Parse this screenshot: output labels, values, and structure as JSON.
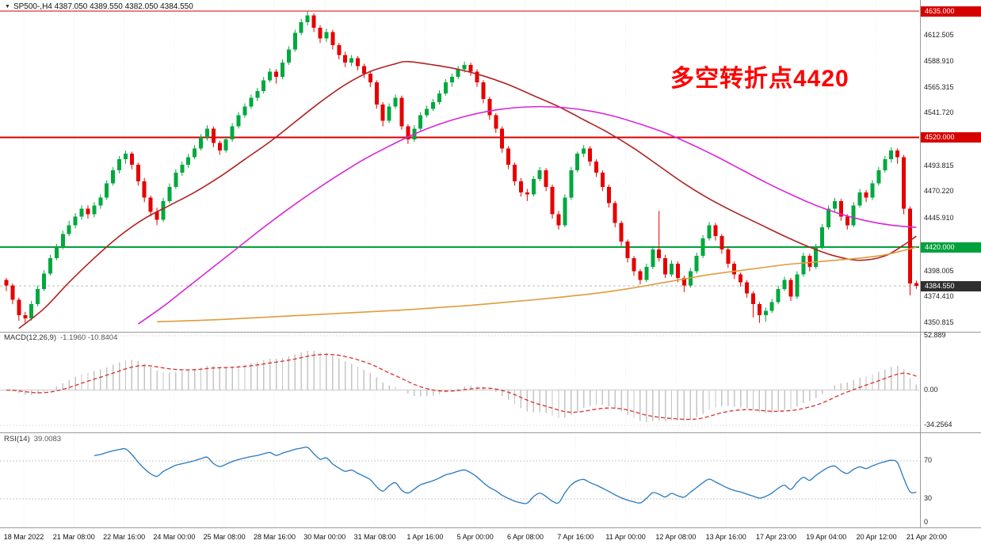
{
  "window": {
    "symbol_line": "SP500-,H4 4387.050 4389.550 4382.050 4384.550"
  },
  "annotation": {
    "text": "多空转折点4420",
    "color": "#ff0000"
  },
  "indicators": {
    "macd": {
      "label": "MACD(12,26,9)",
      "values": "-1.1960 -10.8404",
      "axis": [
        {
          "label": "52.889",
          "value": 52.889
        },
        {
          "label": "0.00",
          "value": 0
        },
        {
          "label": "-34.2564",
          "value": -34.2564
        }
      ]
    },
    "rsi": {
      "label": "RSI(14)",
      "value": "39.0083",
      "axis": [
        {
          "label": "70",
          "value": 70
        },
        {
          "label": "30",
          "value": 30
        },
        {
          "label": "0",
          "value": 0
        }
      ],
      "levels": [
        70,
        30
      ]
    }
  },
  "price_axis": {
    "ticks": [
      {
        "label": "4612.505",
        "value": 4612.505
      },
      {
        "label": "4588.910",
        "value": 4588.91
      },
      {
        "label": "4565.315",
        "value": 4565.315
      },
      {
        "label": "4541.720",
        "value": 4541.72
      },
      {
        "label": "4493.815",
        "value": 4493.815
      },
      {
        "label": "4470.220",
        "value": 4470.22
      },
      {
        "label": "4445.910",
        "value": 4445.91
      },
      {
        "label": "4398.005",
        "value": 4398.005
      },
      {
        "label": "4374.410",
        "value": 4374.41
      },
      {
        "label": "4350.815",
        "value": 4350.815
      }
    ]
  },
  "levels": [
    {
      "label": "4635.000",
      "price": 4635.0,
      "color": "#d60000"
    },
    {
      "label": "4520.000",
      "price": 4520.0,
      "color": "#d60000"
    },
    {
      "label": "4420.000",
      "price": 4420.0,
      "color": "#00a13c"
    }
  ],
  "current_price": {
    "label": "4384.550",
    "price": 4384.55,
    "tag_color": "#2f2f2f"
  },
  "time_axis": {
    "labels": [
      "18 Mar 2022",
      "21 Mar 08:00",
      "22 Mar 16:00",
      "24 Mar 00:00",
      "25 Mar 08:00",
      "28 Mar 16:00",
      "30 Mar 00:00",
      "31 Mar 08:00",
      "1 Apr 16:00",
      "5 Apr 00:00",
      "6 Apr 08:00",
      "7 Apr 16:00",
      "11 Apr 00:00",
      "12 Apr 08:00",
      "13 Apr 16:00",
      "17 Apr 23:00",
      "19 Apr 04:00",
      "20 Apr 12:00",
      "21 Apr 20:00"
    ]
  },
  "colors": {
    "bull": "#00a83e",
    "bear": "#e60000",
    "ma_fast": "#b22222",
    "ma_mid": "#d926d9",
    "ma_slow": "#e09c3c",
    "macd_hist": "#c4c4c4",
    "macd_signal": "#d93030",
    "rsi": "#2878be",
    "grid": "#ededed",
    "frame": "#9a9a9a",
    "current_line": "#bbbbbb"
  },
  "chart_data": {
    "type": "candlestick",
    "symbol": "SP500-",
    "timeframe": "H4",
    "ohlc_display": {
      "open": "4387.050",
      "high": "4389.550",
      "low": "4382.050",
      "close": "4384.550"
    },
    "y_range": [
      4350.815,
      4635.0
    ],
    "x_range": [
      "18 Mar 2022",
      "21 Apr 2022 20:00"
    ],
    "horizontal_levels": [
      4635.0,
      4520.0,
      4420.0
    ],
    "current_price": 4384.55,
    "candles": [
      [
        4390,
        4392,
        4380,
        4385
      ],
      [
        4385,
        4387,
        4368,
        4372
      ],
      [
        4372,
        4374,
        4353,
        4358
      ],
      [
        4358,
        4361,
        4351,
        4355
      ],
      [
        4355,
        4371,
        4353,
        4368
      ],
      [
        4368,
        4385,
        4366,
        4382
      ],
      [
        4382,
        4399,
        4380,
        4396
      ],
      [
        4396,
        4413,
        4394,
        4410
      ],
      [
        4410,
        4423,
        4408,
        4420
      ],
      [
        4420,
        4435,
        4418,
        4432
      ],
      [
        4432,
        4444,
        4430,
        4440
      ],
      [
        4440,
        4451,
        4437,
        4448
      ],
      [
        4448,
        4458,
        4445,
        4455
      ],
      [
        4455,
        4458,
        4446,
        4450
      ],
      [
        4450,
        4461,
        4447,
        4458
      ],
      [
        4458,
        4468,
        4455,
        4465
      ],
      [
        4465,
        4481,
        4463,
        4478
      ],
      [
        4478,
        4493,
        4476,
        4490
      ],
      [
        4490,
        4503,
        4487,
        4500
      ],
      [
        4500,
        4508,
        4496,
        4505
      ],
      [
        4505,
        4507,
        4491,
        4495
      ],
      [
        4495,
        4497,
        4476,
        4480
      ],
      [
        4480,
        4483,
        4461,
        4465
      ],
      [
        4465,
        4467,
        4448,
        4452
      ],
      [
        4452,
        4456,
        4440,
        4445
      ],
      [
        4445,
        4465,
        4443,
        4462
      ],
      [
        4462,
        4478,
        4460,
        4475
      ],
      [
        4475,
        4491,
        4473,
        4488
      ],
      [
        4488,
        4498,
        4485,
        4495
      ],
      [
        4495,
        4505,
        4492,
        4502
      ],
      [
        4502,
        4513,
        4500,
        4510
      ],
      [
        4510,
        4523,
        4508,
        4520
      ],
      [
        4520,
        4531,
        4517,
        4528
      ],
      [
        4528,
        4530,
        4511,
        4515
      ],
      [
        4515,
        4517,
        4504,
        4508
      ],
      [
        4508,
        4521,
        4506,
        4518
      ],
      [
        4518,
        4533,
        4516,
        4530
      ],
      [
        4530,
        4543,
        4528,
        4540
      ],
      [
        4540,
        4551,
        4538,
        4548
      ],
      [
        4548,
        4559,
        4546,
        4556
      ],
      [
        4556,
        4565,
        4553,
        4562
      ],
      [
        4562,
        4575,
        4560,
        4572
      ],
      [
        4572,
        4583,
        4570,
        4580
      ],
      [
        4580,
        4582,
        4569,
        4575
      ],
      [
        4575,
        4591,
        4573,
        4588
      ],
      [
        4588,
        4603,
        4586,
        4600
      ],
      [
        4600,
        4618,
        4598,
        4615
      ],
      [
        4615,
        4628,
        4613,
        4625
      ],
      [
        4625,
        4634.5,
        4622,
        4631
      ],
      [
        4631,
        4633,
        4616,
        4620
      ],
      [
        4620,
        4622,
        4606,
        4610
      ],
      [
        4610,
        4619,
        4607,
        4616
      ],
      [
        4616,
        4618,
        4600,
        4604
      ],
      [
        4604,
        4606,
        4591,
        4595
      ],
      [
        4595,
        4598,
        4584,
        4588
      ],
      [
        4588,
        4595,
        4585,
        4592
      ],
      [
        4592,
        4594,
        4581,
        4585
      ],
      [
        4585,
        4587,
        4574,
        4578
      ],
      [
        4578,
        4580,
        4566,
        4570
      ],
      [
        4570,
        4572,
        4546,
        4550
      ],
      [
        4550,
        4552,
        4530,
        4535
      ],
      [
        4535,
        4551,
        4533,
        4548
      ],
      [
        4548,
        4559,
        4546,
        4556
      ],
      [
        4556,
        4558,
        4527,
        4530
      ],
      [
        4530,
        4532,
        4514,
        4518
      ],
      [
        4518,
        4531,
        4516,
        4528
      ],
      [
        4528,
        4543,
        4526,
        4540
      ],
      [
        4540,
        4549,
        4538,
        4546
      ],
      [
        4546,
        4555,
        4544,
        4552
      ],
      [
        4552,
        4563,
        4550,
        4560
      ],
      [
        4560,
        4573,
        4558,
        4570
      ],
      [
        4570,
        4578,
        4566,
        4575
      ],
      [
        4575,
        4585,
        4573,
        4582
      ],
      [
        4582,
        4589,
        4579,
        4586
      ],
      [
        4586,
        4588,
        4576,
        4580
      ],
      [
        4580,
        4582,
        4566,
        4570
      ],
      [
        4570,
        4572,
        4551,
        4555
      ],
      [
        4555,
        4557,
        4536,
        4540
      ],
      [
        4540,
        4542,
        4524,
        4528
      ],
      [
        4528,
        4530,
        4506,
        4510
      ],
      [
        4510,
        4512,
        4491,
        4495
      ],
      [
        4495,
        4497,
        4476,
        4480
      ],
      [
        4480,
        4483,
        4466,
        4470
      ],
      [
        4470,
        4473,
        4462,
        4468
      ],
      [
        4468,
        4485,
        4466,
        4482
      ],
      [
        4482,
        4493,
        4480,
        4490
      ],
      [
        4490,
        4492,
        4471,
        4475
      ],
      [
        4475,
        4477,
        4446,
        4450
      ],
      [
        4450,
        4453,
        4436,
        4440
      ],
      [
        4440,
        4468,
        4438,
        4465
      ],
      [
        4465,
        4493,
        4463,
        4490
      ],
      [
        4490,
        4507,
        4488,
        4505
      ],
      [
        4505,
        4513,
        4502,
        4510
      ],
      [
        4510,
        4512,
        4494,
        4498
      ],
      [
        4498,
        4500,
        4484,
        4488
      ],
      [
        4488,
        4490,
        4471,
        4475
      ],
      [
        4475,
        4477,
        4456,
        4460
      ],
      [
        4460,
        4462,
        4438,
        4442
      ],
      [
        4442,
        4444,
        4421,
        4425
      ],
      [
        4425,
        4427,
        4406,
        4410
      ],
      [
        4410,
        4412,
        4394,
        4398
      ],
      [
        4398,
        4400,
        4386,
        4390
      ],
      [
        4390,
        4405,
        4388,
        4402
      ],
      [
        4402,
        4421,
        4400,
        4418
      ],
      [
        4418,
        4453,
        4407,
        4410
      ],
      [
        4410,
        4413,
        4392,
        4395
      ],
      [
        4395,
        4408,
        4393,
        4405
      ],
      [
        4405,
        4407,
        4388,
        4392
      ],
      [
        4392,
        4394,
        4379,
        4385
      ],
      [
        4385,
        4401,
        4383,
        4398
      ],
      [
        4398,
        4415,
        4396,
        4412
      ],
      [
        4412,
        4431,
        4410,
        4428
      ],
      [
        4428,
        4443,
        4426,
        4440
      ],
      [
        4440,
        4442,
        4426,
        4430
      ],
      [
        4430,
        4432,
        4414,
        4418
      ],
      [
        4418,
        4420,
        4401,
        4405
      ],
      [
        4405,
        4407,
        4391,
        4395
      ],
      [
        4395,
        4397,
        4384,
        4388
      ],
      [
        4388,
        4390,
        4374,
        4378
      ],
      [
        4378,
        4380,
        4356,
        4368
      ],
      [
        4368,
        4370,
        4351,
        4358
      ],
      [
        4358,
        4365,
        4352,
        4362
      ],
      [
        4362,
        4373,
        4360,
        4370
      ],
      [
        4370,
        4385,
        4368,
        4382
      ],
      [
        4382,
        4393,
        4380,
        4390
      ],
      [
        4390,
        4392,
        4371,
        4375
      ],
      [
        4375,
        4398,
        4373,
        4395
      ],
      [
        4395,
        4415,
        4393,
        4412
      ],
      [
        4412,
        4414,
        4398,
        4402
      ],
      [
        4402,
        4423,
        4400,
        4420
      ],
      [
        4420,
        4441,
        4418,
        4438
      ],
      [
        4438,
        4458,
        4436,
        4455
      ],
      [
        4455,
        4465,
        4452,
        4462
      ],
      [
        4462,
        4464,
        4444,
        4448
      ],
      [
        4448,
        4450,
        4436,
        4440
      ],
      [
        4440,
        4461,
        4438,
        4458
      ],
      [
        4458,
        4473,
        4456,
        4470
      ],
      [
        4470,
        4472,
        4461,
        4465
      ],
      [
        4465,
        4481,
        4463,
        4478
      ],
      [
        4478,
        4493,
        4476,
        4490
      ],
      [
        4490,
        4503,
        4488,
        4500
      ],
      [
        4500,
        4511,
        4497,
        4508
      ],
      [
        4508,
        4510,
        4496,
        4502
      ],
      [
        4502,
        4504,
        4450,
        4455
      ],
      [
        4455,
        4457,
        4376,
        4387
      ],
      [
        4387.1,
        4389.6,
        4382.1,
        4384.6
      ]
    ],
    "moving_averages": [
      {
        "name": "ma-fast-darkred",
        "points": [
          [
            2,
            4346
          ],
          [
            6,
            4364
          ],
          [
            10,
            4388
          ],
          [
            14,
            4410
          ],
          [
            18,
            4430
          ],
          [
            22,
            4446
          ],
          [
            26,
            4458
          ],
          [
            30,
            4470
          ],
          [
            34,
            4484
          ],
          [
            38,
            4500
          ],
          [
            42,
            4516
          ],
          [
            46,
            4534
          ],
          [
            50,
            4552
          ],
          [
            54,
            4568
          ],
          [
            58,
            4580
          ],
          [
            62,
            4587
          ],
          [
            64,
            4589
          ],
          [
            68,
            4586
          ],
          [
            72,
            4582
          ],
          [
            76,
            4576
          ],
          [
            80,
            4568
          ],
          [
            84,
            4558
          ],
          [
            88,
            4548
          ],
          [
            92,
            4536
          ],
          [
            96,
            4524
          ],
          [
            100,
            4510
          ],
          [
            104,
            4494
          ],
          [
            108,
            4478
          ],
          [
            112,
            4464
          ],
          [
            116,
            4452
          ],
          [
            120,
            4441
          ],
          [
            124,
            4430
          ],
          [
            128,
            4420
          ],
          [
            132,
            4412
          ],
          [
            136,
            4408
          ],
          [
            140,
            4412
          ],
          [
            143,
            4422
          ],
          [
            145,
            4430
          ]
        ]
      },
      {
        "name": "ma-mid-magenta",
        "points": [
          [
            21,
            4350
          ],
          [
            25,
            4366
          ],
          [
            29,
            4384
          ],
          [
            33,
            4402
          ],
          [
            37,
            4420
          ],
          [
            41,
            4438
          ],
          [
            45,
            4455
          ],
          [
            49,
            4471
          ],
          [
            53,
            4486
          ],
          [
            57,
            4500
          ],
          [
            61,
            4512
          ],
          [
            65,
            4523
          ],
          [
            69,
            4532
          ],
          [
            73,
            4539
          ],
          [
            77,
            4544
          ],
          [
            81,
            4547
          ],
          [
            85,
            4548
          ],
          [
            89,
            4547
          ],
          [
            93,
            4544
          ],
          [
            97,
            4539
          ],
          [
            101,
            4532
          ],
          [
            105,
            4524
          ],
          [
            109,
            4514
          ],
          [
            113,
            4503
          ],
          [
            117,
            4491
          ],
          [
            121,
            4479
          ],
          [
            125,
            4468
          ],
          [
            129,
            4458
          ],
          [
            133,
            4450
          ],
          [
            137,
            4444
          ],
          [
            141,
            4440
          ],
          [
            145,
            4438
          ]
        ]
      },
      {
        "name": "ma-slow-orange",
        "points": [
          [
            24,
            4352
          ],
          [
            34,
            4354
          ],
          [
            44,
            4357
          ],
          [
            54,
            4360
          ],
          [
            64,
            4363
          ],
          [
            74,
            4367
          ],
          [
            84,
            4372
          ],
          [
            94,
            4378
          ],
          [
            100,
            4383
          ],
          [
            104,
            4387
          ],
          [
            108,
            4391
          ],
          [
            112,
            4395
          ],
          [
            116,
            4398
          ],
          [
            120,
            4401
          ],
          [
            124,
            4404
          ],
          [
            128,
            4406
          ],
          [
            132,
            4408
          ],
          [
            136,
            4410
          ],
          [
            140,
            4413
          ],
          [
            143,
            4417
          ],
          [
            145,
            4420
          ]
        ]
      }
    ],
    "macd": {
      "fast": 12,
      "slow": 26,
      "signal": 9,
      "display_values": [
        -1.196,
        -10.8404
      ],
      "axis_max": 52.889,
      "axis_min": -34.2564
    },
    "rsi": {
      "period": 14,
      "value": 39.0083,
      "levels": [
        70,
        30
      ]
    }
  }
}
